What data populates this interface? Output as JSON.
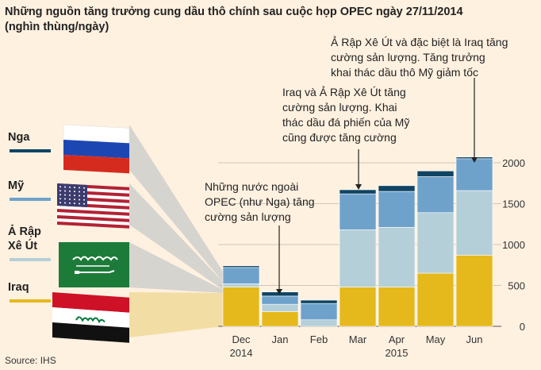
{
  "title": "Những nguồn tăng trưởng cung dầu thô chính sau cuộc họp OPEC ngày 27/11/2014",
  "subtitle": "(nghìn thùng/ngày)",
  "source": "Source: IHS",
  "colors": {
    "background": "#fff1e0",
    "russia": "#0f4463",
    "us": "#6fa2cb",
    "saudi": "#b5cfd9",
    "iraq": "#e5b81b",
    "iraq_fan": "#f1dca0",
    "flag_fan": "#c8c9c9"
  },
  "flags": [
    "russia-flag",
    "us-flag",
    "saudi-flag",
    "iraq-flag"
  ],
  "legend": [
    {
      "label": "Nga",
      "color": "#0f4463"
    },
    {
      "label": "Mỹ",
      "color": "#6fa2cb"
    },
    {
      "label": "Ả Rập\nXê Út",
      "color": "#b5cfd9"
    },
    {
      "label": "Iraq",
      "color": "#e5b81b"
    }
  ],
  "annotations": [
    {
      "text": "Những nước ngoài\nOPEC (như Nga) tăng\ncường sản lượng"
    },
    {
      "text": "Iraq và Ả Rập Xê Út tăng\ncường sản lượng. Khai\nthác dầu đá phiến của Mỹ\ncũng được tăng cường"
    },
    {
      "text": "Ả Rập Xê Út và đặc biệt là Iraq tăng\ncường sản lượng. Tăng trưởng\nkhai thác dầu thô Mỹ giảm tốc"
    }
  ],
  "chart_data": {
    "type": "bar",
    "stacked": true,
    "categories": [
      "Dec\n2014",
      "Jan",
      "Feb",
      "Mar",
      "Apr\n2015",
      "May",
      "Jun"
    ],
    "series": [
      {
        "name": "Iraq",
        "color": "#e5b81b",
        "values": [
          480,
          180,
          0,
          480,
          480,
          650,
          870
        ]
      },
      {
        "name": "Ả Rập Xê Út",
        "color": "#b5cfd9",
        "values": [
          40,
          90,
          80,
          700,
          730,
          740,
          790
        ]
      },
      {
        "name": "Mỹ",
        "color": "#6fa2cb",
        "values": [
          200,
          100,
          200,
          440,
          440,
          440,
          390
        ]
      },
      {
        "name": "Nga",
        "color": "#0f4463",
        "values": [
          20,
          50,
          40,
          50,
          70,
          70,
          20
        ]
      }
    ],
    "ylim": [
      0,
      2000
    ],
    "yticks": [
      "0",
      "500",
      "1000",
      "1500",
      "2000"
    ],
    "ytick_values": [
      0,
      500,
      1000,
      1500,
      2000
    ],
    "grid": true,
    "legend_position": "left"
  }
}
